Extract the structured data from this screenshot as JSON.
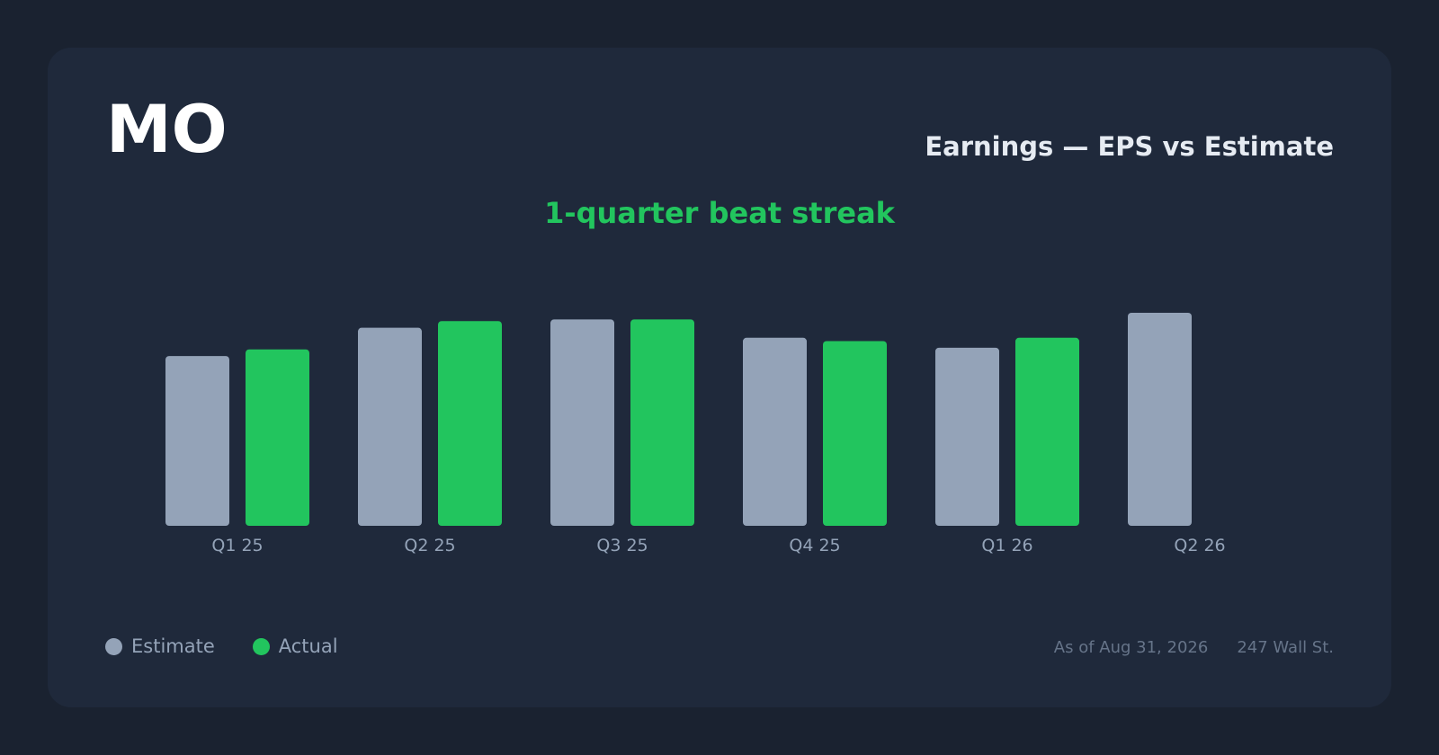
{
  "header": {
    "ticker": "MO",
    "title": "Earnings — EPS vs Estimate",
    "streak": "1-quarter beat streak"
  },
  "colors": {
    "background": "#1a2230",
    "card": "#1f293b",
    "estimate": "#94a3b8",
    "actual": "#22c55e",
    "streak": "#22c55e"
  },
  "chart_data": {
    "type": "bar",
    "title": "Earnings — EPS vs Estimate",
    "categories": [
      "Q1 25",
      "Q2 25",
      "Q3 25",
      "Q4 25",
      "Q1 26",
      "Q2 26"
    ],
    "series": [
      {
        "name": "Estimate",
        "values": [
          1.02,
          1.19,
          1.24,
          1.13,
          1.07,
          1.28
        ]
      },
      {
        "name": "Actual",
        "values": [
          1.06,
          1.23,
          1.24,
          1.11,
          1.13,
          null
        ]
      }
    ],
    "ylim": [
      0,
      1.28
    ],
    "grid": false,
    "legend_position": "bottom-left"
  },
  "legend": {
    "estimate_label": "Estimate",
    "actual_label": "Actual"
  },
  "footer": {
    "as_of": "As of Aug 31, 2026",
    "source": "247 Wall St."
  }
}
